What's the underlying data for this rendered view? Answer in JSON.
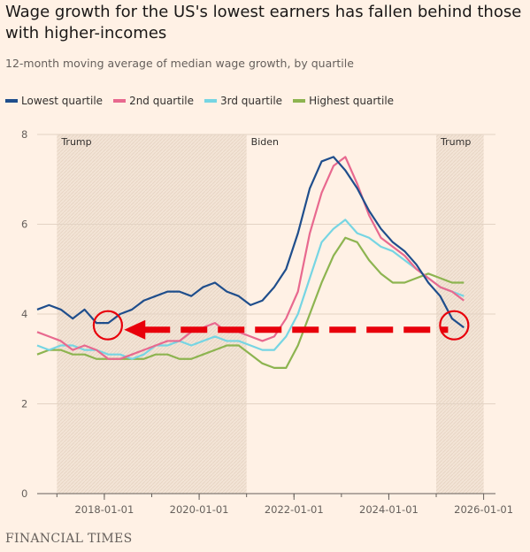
{
  "chart_data": {
    "type": "line",
    "title": "Wage growth for the US's lowest earners has fallen behind those with higher-incomes",
    "subtitle": "12-month moving average of median wage growth, by quartile",
    "source": "FINANCIAL TIMES",
    "ylim": [
      0,
      8
    ],
    "yticks": [
      0,
      2,
      4,
      6,
      8
    ],
    "xlim": [
      "2016-08-01",
      "2025-11-01"
    ],
    "xticks": [
      "2018-01-01",
      "2020-01-01",
      "2022-01-01",
      "2024-01-01",
      "2026-01-01"
    ],
    "grid": true,
    "legend_position": "top",
    "shaded_periods": [
      {
        "label": "Trump",
        "start": "2017-01-01",
        "end": "2021-01-01",
        "shaded": true
      },
      {
        "label": "Biden",
        "start": "2021-01-01",
        "end": "2025-01-01",
        "shaded": false
      },
      {
        "label": "Trump",
        "start": "2025-01-01",
        "end": "2026-01-01",
        "shaded": true
      }
    ],
    "annotations": {
      "circle_left": {
        "x": "2018-01-01",
        "y": 3.75
      },
      "circle_right": {
        "x": "2025-06-01",
        "y": 3.75
      },
      "arrow": {
        "from": "2025-04-01",
        "to": "2018-06-01",
        "y": 3.65,
        "color": "#e8000b"
      }
    },
    "x": [
      "2016-08",
      "2016-11",
      "2017-02",
      "2017-05",
      "2017-08",
      "2017-11",
      "2018-02",
      "2018-05",
      "2018-08",
      "2018-11",
      "2019-02",
      "2019-05",
      "2019-08",
      "2019-11",
      "2020-02",
      "2020-05",
      "2020-08",
      "2020-11",
      "2021-02",
      "2021-05",
      "2021-08",
      "2021-11",
      "2022-02",
      "2022-05",
      "2022-08",
      "2022-11",
      "2023-02",
      "2023-05",
      "2023-08",
      "2023-11",
      "2024-02",
      "2024-05",
      "2024-08",
      "2024-11",
      "2025-02",
      "2025-05",
      "2025-08"
    ],
    "series": [
      {
        "name": "Lowest quartile",
        "color": "#1f4e8c",
        "values": [
          4.1,
          4.2,
          4.1,
          3.9,
          4.1,
          3.8,
          3.8,
          4.0,
          4.1,
          4.3,
          4.4,
          4.5,
          4.5,
          4.4,
          4.6,
          4.7,
          4.5,
          4.4,
          4.2,
          4.3,
          4.6,
          5.0,
          5.8,
          6.8,
          7.4,
          7.5,
          7.2,
          6.8,
          6.3,
          5.9,
          5.6,
          5.4,
          5.1,
          4.7,
          4.4,
          3.9,
          3.7
        ]
      },
      {
        "name": "2nd quartile",
        "color": "#e8698f",
        "values": [
          3.6,
          3.5,
          3.4,
          3.2,
          3.3,
          3.2,
          3.0,
          3.0,
          3.1,
          3.2,
          3.3,
          3.4,
          3.4,
          3.6,
          3.7,
          3.8,
          3.6,
          3.6,
          3.5,
          3.4,
          3.5,
          3.9,
          4.5,
          5.8,
          6.7,
          7.3,
          7.5,
          6.9,
          6.2,
          5.7,
          5.5,
          5.3,
          5.0,
          4.8,
          4.6,
          4.5,
          4.3
        ]
      },
      {
        "name": "3rd quartile",
        "color": "#76d5e3",
        "values": [
          3.3,
          3.2,
          3.3,
          3.3,
          3.2,
          3.2,
          3.1,
          3.1,
          3.0,
          3.1,
          3.3,
          3.3,
          3.4,
          3.3,
          3.4,
          3.5,
          3.4,
          3.4,
          3.3,
          3.2,
          3.2,
          3.5,
          4.0,
          4.8,
          5.6,
          5.9,
          6.1,
          5.8,
          5.7,
          5.5,
          5.4,
          5.2,
          5.0,
          4.8,
          4.6,
          4.5,
          4.4
        ]
      },
      {
        "name": "Highest quartile",
        "color": "#8db450",
        "values": [
          3.1,
          3.2,
          3.2,
          3.1,
          3.1,
          3.0,
          3.0,
          3.0,
          3.0,
          3.0,
          3.1,
          3.1,
          3.0,
          3.0,
          3.1,
          3.2,
          3.3,
          3.3,
          3.1,
          2.9,
          2.8,
          2.8,
          3.3,
          4.0,
          4.7,
          5.3,
          5.7,
          5.6,
          5.2,
          4.9,
          4.7,
          4.7,
          4.8,
          4.9,
          4.8,
          4.7,
          4.7
        ]
      }
    ]
  }
}
